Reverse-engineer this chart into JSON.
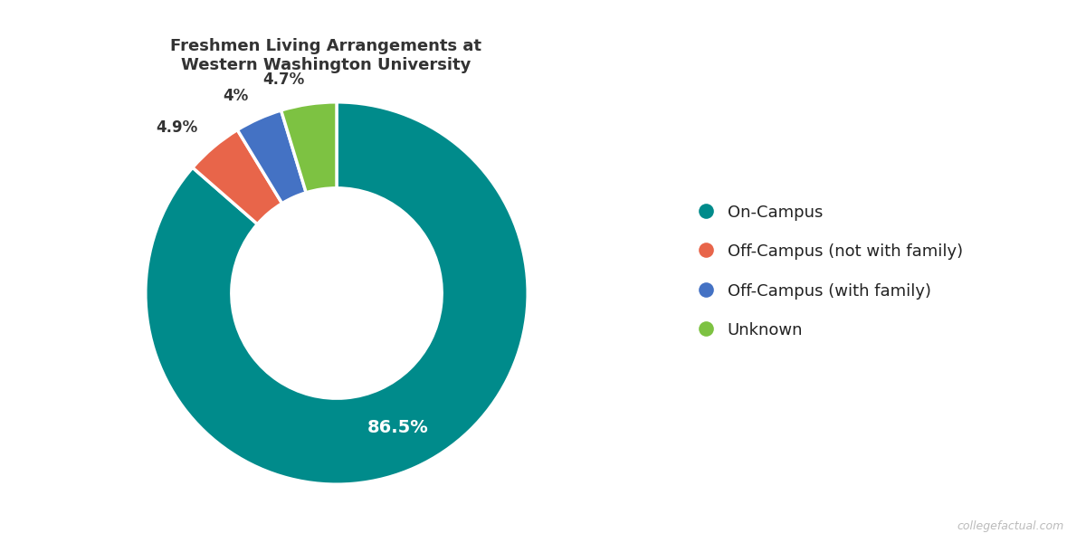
{
  "title": "Freshmen Living Arrangements at\nWestern Washington University",
  "labels": [
    "On-Campus",
    "Off-Campus (not with family)",
    "Off-Campus (with family)",
    "Unknown"
  ],
  "values": [
    86.5,
    4.9,
    4.0,
    4.7
  ],
  "colors": [
    "#008B8B",
    "#E8654A",
    "#4472C4",
    "#7DC242"
  ],
  "pct_labels": [
    "86.5%",
    "4.9%",
    "4%",
    "4.7%"
  ],
  "title_fontsize": 13,
  "label_fontsize": 12,
  "legend_fontsize": 13,
  "watermark": "collegefactual.com",
  "background_color": "#FFFFFF",
  "donut_width": 0.45
}
